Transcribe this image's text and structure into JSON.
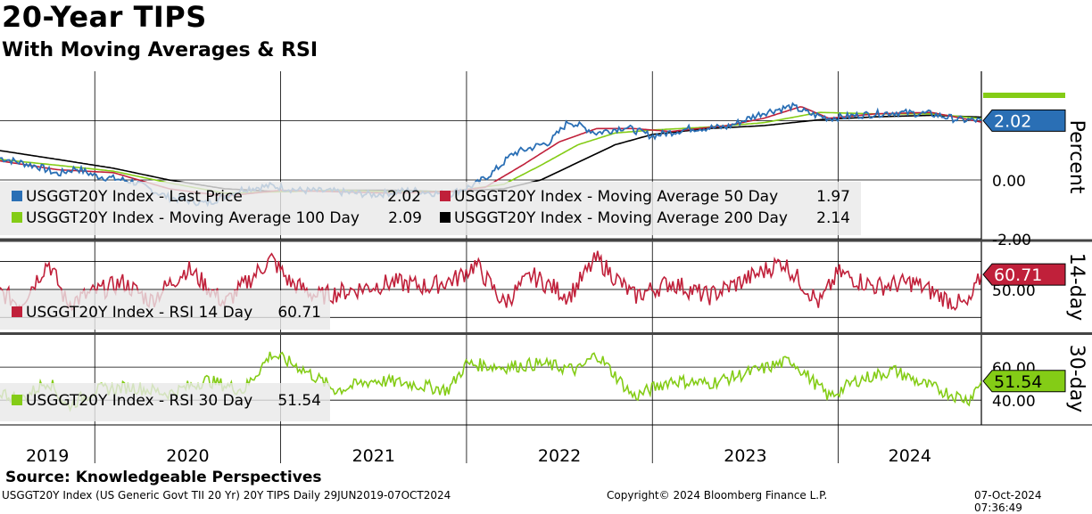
{
  "header": {
    "title": "20-Year TIPS",
    "subtitle": "With Moving Averages & RSI"
  },
  "footer": {
    "source": "Source: Knowledgeable Perspectives",
    "description": "USGGT20Y Index (US Generic Govt TII 20 Yr) 20Y TIPS  Daily 29JUN2019-07OCT2024",
    "copyright": "Copyright© 2024 Bloomberg Finance L.P.",
    "timestamp": "07-Oct-2024 07:36:49"
  },
  "colors": {
    "last_price": "#2a6fb5",
    "ma50": "#c0203a",
    "ma100": "#84cc16",
    "ma200": "#000000",
    "rsi14": "#c0203a",
    "rsi30": "#84cc16"
  },
  "chart_data": [
    {
      "type": "line",
      "panel": "price",
      "ylabel": "Percent",
      "ylim": [
        -2.0,
        3.7
      ],
      "y_ticks": [
        "0.00",
        "-2.00"
      ],
      "x_ticks": [
        "2019",
        "2020",
        "2021",
        "2022",
        "2023",
        "2024"
      ],
      "x_range": [
        2019.49,
        2024.77
      ],
      "last_value_label": "2.02",
      "series": [
        {
          "name": "USGGT20Y Index - Last Price",
          "legend_value": "2.02",
          "x": [
            2019.49,
            2019.7,
            2019.8,
            2019.9,
            2020.0,
            2020.2,
            2020.4,
            2020.6,
            2020.8,
            2020.95,
            2021.1,
            2021.3,
            2021.5,
            2021.7,
            2021.9,
            2022.05,
            2022.15,
            2022.25,
            2022.35,
            2022.45,
            2022.55,
            2022.7,
            2022.85,
            2023.0,
            2023.2,
            2023.4,
            2023.6,
            2023.75,
            2023.85,
            2023.95,
            2024.1,
            2024.3,
            2024.5,
            2024.65,
            2024.77
          ],
          "y": [
            0.75,
            0.45,
            0.2,
            0.4,
            0.15,
            -0.05,
            -0.6,
            -0.8,
            -0.3,
            -0.2,
            -0.35,
            -0.4,
            -0.5,
            -0.35,
            -0.5,
            -0.15,
            0.3,
            0.9,
            1.1,
            1.3,
            2.0,
            1.6,
            1.8,
            1.5,
            1.75,
            1.8,
            2.3,
            2.5,
            2.25,
            2.1,
            2.2,
            2.3,
            2.25,
            2.05,
            2.02
          ]
        },
        {
          "name": "USGGT20Y Index - Moving Average 50 Day",
          "legend_value": "1.97",
          "x": [
            2019.49,
            2019.8,
            2020.1,
            2020.4,
            2020.7,
            2021.0,
            2021.3,
            2021.6,
            2021.9,
            2022.1,
            2022.3,
            2022.5,
            2022.7,
            2022.9,
            2023.1,
            2023.4,
            2023.6,
            2023.8,
            2023.95,
            2024.2,
            2024.5,
            2024.77
          ],
          "y": [
            0.65,
            0.35,
            0.25,
            -0.3,
            -0.55,
            -0.35,
            -0.4,
            -0.45,
            -0.4,
            -0.25,
            0.5,
            1.3,
            1.75,
            1.75,
            1.65,
            1.85,
            2.1,
            2.5,
            2.1,
            2.25,
            2.3,
            1.97
          ]
        },
        {
          "name": "USGGT20Y Index - Moving Average 100 Day",
          "legend_value": "2.09",
          "x": [
            2019.49,
            2019.8,
            2020.1,
            2020.4,
            2020.7,
            2021.0,
            2021.3,
            2021.6,
            2021.9,
            2022.2,
            2022.4,
            2022.6,
            2022.8,
            2023.0,
            2023.3,
            2023.6,
            2023.9,
            2024.2,
            2024.5,
            2024.77
          ],
          "y": [
            0.7,
            0.5,
            0.3,
            -0.1,
            -0.45,
            -0.4,
            -0.35,
            -0.4,
            -0.4,
            -0.15,
            0.5,
            1.2,
            1.6,
            1.7,
            1.8,
            1.95,
            2.3,
            2.25,
            2.25,
            2.09
          ]
        },
        {
          "name": "USGGT20Y Index - Moving Average 200 Day",
          "legend_value": "2.14",
          "x": [
            2019.49,
            2019.8,
            2020.1,
            2020.4,
            2020.7,
            2021.0,
            2021.3,
            2021.6,
            2021.9,
            2022.2,
            2022.4,
            2022.6,
            2022.8,
            2023.0,
            2023.3,
            2023.6,
            2023.9,
            2024.2,
            2024.5,
            2024.77
          ],
          "y": [
            1.0,
            0.7,
            0.4,
            0.0,
            -0.3,
            -0.4,
            -0.35,
            -0.35,
            -0.4,
            -0.3,
            0.0,
            0.6,
            1.2,
            1.55,
            1.75,
            1.85,
            2.05,
            2.15,
            2.2,
            2.14
          ]
        }
      ]
    },
    {
      "type": "line",
      "panel": "rsi14",
      "ylabel": "14-day",
      "ylim": [
        20,
        85
      ],
      "y_ticks": [
        "50.00"
      ],
      "last_value_label": "60.71",
      "series": [
        {
          "name": "USGGT20Y Index - RSI 14 Day",
          "legend_value": "60.71",
          "x": [
            2019.49,
            2019.6,
            2019.75,
            2019.85,
            2020.0,
            2020.15,
            2020.3,
            2020.5,
            2020.7,
            2020.95,
            2021.05,
            2021.2,
            2021.4,
            2021.6,
            2021.8,
            2021.95,
            2022.05,
            2022.2,
            2022.35,
            2022.55,
            2022.7,
            2022.9,
            2023.1,
            2023.3,
            2023.55,
            2023.7,
            2023.9,
            2024.0,
            2024.2,
            2024.4,
            2024.6,
            2024.7,
            2024.77
          ],
          "y": [
            48,
            40,
            70,
            40,
            48,
            55,
            42,
            65,
            40,
            72,
            55,
            45,
            50,
            55,
            52,
            58,
            68,
            40,
            60,
            45,
            72,
            45,
            55,
            45,
            60,
            70,
            40,
            62,
            52,
            55,
            42,
            38,
            60.71
          ]
        }
      ]
    },
    {
      "type": "line",
      "panel": "rsi30",
      "ylabel": "30-day",
      "ylim": [
        25,
        80
      ],
      "y_ticks": [
        "60.00",
        "40.00"
      ],
      "last_value_label": "51.54",
      "series": [
        {
          "name": "USGGT20Y Index - RSI 30 Day",
          "legend_value": "51.54",
          "x": [
            2019.49,
            2019.6,
            2019.75,
            2019.85,
            2020.0,
            2020.2,
            2020.4,
            2020.6,
            2020.8,
            2020.95,
            2021.1,
            2021.3,
            2021.5,
            2021.7,
            2021.9,
            2022.0,
            2022.2,
            2022.4,
            2022.6,
            2022.7,
            2022.9,
            2023.1,
            2023.3,
            2023.5,
            2023.75,
            2023.95,
            2024.1,
            2024.3,
            2024.45,
            2024.6,
            2024.7,
            2024.77
          ],
          "y": [
            45,
            40,
            52,
            36,
            46,
            48,
            44,
            52,
            46,
            68,
            60,
            46,
            52,
            50,
            46,
            62,
            60,
            62,
            58,
            68,
            42,
            52,
            50,
            56,
            64,
            42,
            52,
            58,
            50,
            44,
            40,
            51.54
          ]
        }
      ]
    }
  ]
}
